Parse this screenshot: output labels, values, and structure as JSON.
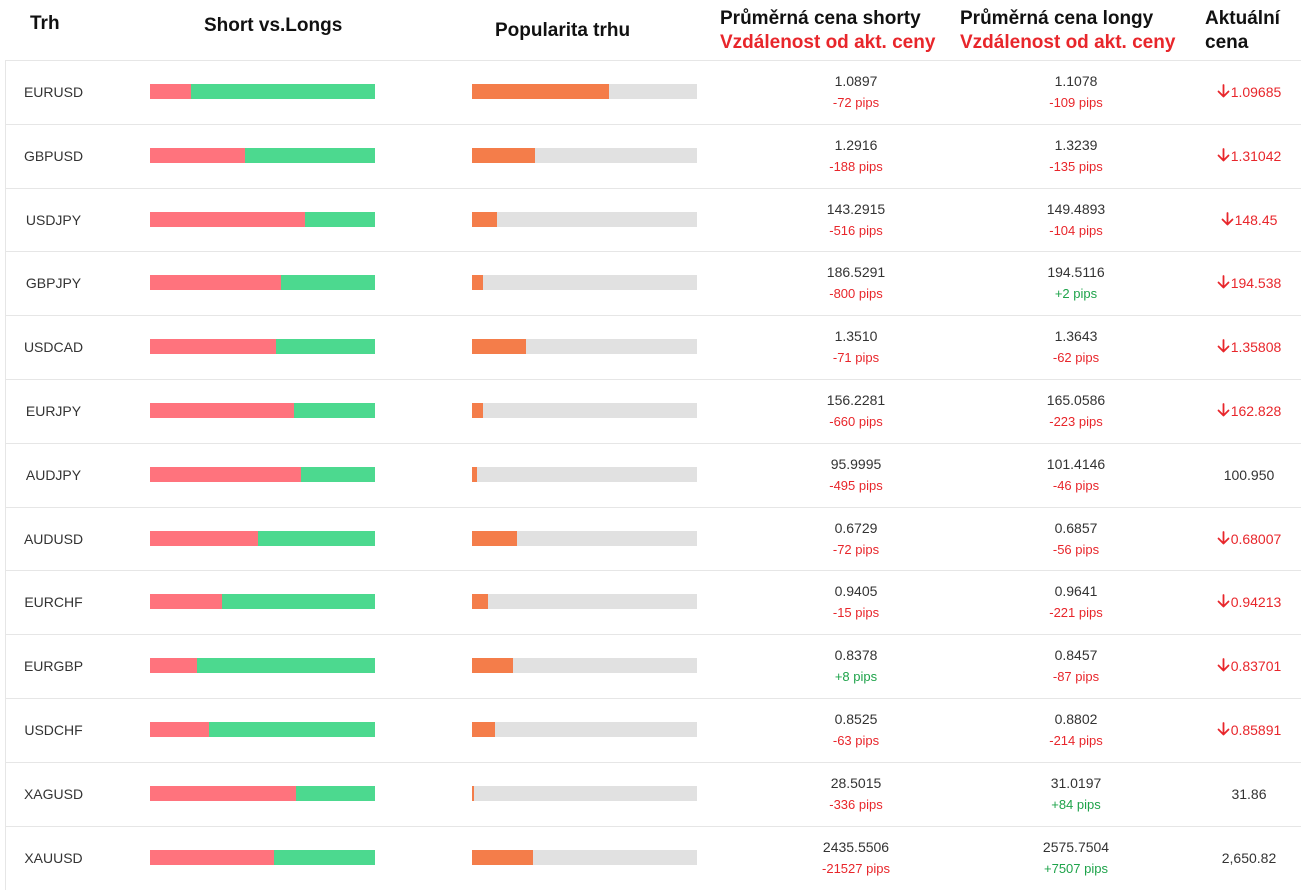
{
  "columns": {
    "market": "Trh",
    "short_vs_longs": "Short vs.Longs",
    "popularity": "Popularita trhu",
    "avg_short": "Průměrná cena shorty",
    "avg_short_sub": "Vzdálenost od akt. ceny",
    "avg_long": "Průměrná cena longy",
    "avg_long_sub": "Vzdálenost od akt. ceny",
    "current_a": "Aktuální",
    "current_b": "cena"
  },
  "colors": {
    "short": "#ff737d",
    "long": "#4cd98f",
    "popularity": "#f47d4a",
    "popularity_track": "#e1e1e1",
    "negative": "#e8262b",
    "positive": "#1ea34a"
  },
  "rows": [
    {
      "symbol": "EURUSD",
      "short_pct": 18,
      "popularity_pct": 61,
      "avg_short": "1.0897",
      "short_pips": "-72 pips",
      "short_pips_sign": "neg",
      "avg_long": "1.1078",
      "long_pips": "-109 pips",
      "long_pips_sign": "neg",
      "current": "1.09685",
      "direction": "down"
    },
    {
      "symbol": "GBPUSD",
      "short_pct": 42,
      "popularity_pct": 28,
      "avg_short": "1.2916",
      "short_pips": "-188 pips",
      "short_pips_sign": "neg",
      "avg_long": "1.3239",
      "long_pips": "-135 pips",
      "long_pips_sign": "neg",
      "current": "1.31042",
      "direction": "down"
    },
    {
      "symbol": "USDJPY",
      "short_pct": 69,
      "popularity_pct": 11,
      "avg_short": "143.2915",
      "short_pips": "-516 pips",
      "short_pips_sign": "neg",
      "avg_long": "149.4893",
      "long_pips": "-104 pips",
      "long_pips_sign": "neg",
      "current": "148.45",
      "direction": "down"
    },
    {
      "symbol": "GBPJPY",
      "short_pct": 58,
      "popularity_pct": 5,
      "avg_short": "186.5291",
      "short_pips": "-800 pips",
      "short_pips_sign": "neg",
      "avg_long": "194.5116",
      "long_pips": "+2 pips",
      "long_pips_sign": "pos",
      "current": "194.538",
      "direction": "down"
    },
    {
      "symbol": "USDCAD",
      "short_pct": 56,
      "popularity_pct": 24,
      "avg_short": "1.3510",
      "short_pips": "-71 pips",
      "short_pips_sign": "neg",
      "avg_long": "1.3643",
      "long_pips": "-62 pips",
      "long_pips_sign": "neg",
      "current": "1.35808",
      "direction": "down"
    },
    {
      "symbol": "EURJPY",
      "short_pct": 64,
      "popularity_pct": 5,
      "avg_short": "156.2281",
      "short_pips": "-660 pips",
      "short_pips_sign": "neg",
      "avg_long": "165.0586",
      "long_pips": "-223 pips",
      "long_pips_sign": "neg",
      "current": "162.828",
      "direction": "down"
    },
    {
      "symbol": "AUDJPY",
      "short_pct": 67,
      "popularity_pct": 2,
      "avg_short": "95.9995",
      "short_pips": "-495 pips",
      "short_pips_sign": "neg",
      "avg_long": "101.4146",
      "long_pips": "-46 pips",
      "long_pips_sign": "neg",
      "current": "100.950",
      "direction": "flat"
    },
    {
      "symbol": "AUDUSD",
      "short_pct": 48,
      "popularity_pct": 20,
      "avg_short": "0.6729",
      "short_pips": "-72 pips",
      "short_pips_sign": "neg",
      "avg_long": "0.6857",
      "long_pips": "-56 pips",
      "long_pips_sign": "neg",
      "current": "0.68007",
      "direction": "down"
    },
    {
      "symbol": "EURCHF",
      "short_pct": 32,
      "popularity_pct": 7,
      "avg_short": "0.9405",
      "short_pips": "-15 pips",
      "short_pips_sign": "neg",
      "avg_long": "0.9641",
      "long_pips": "-221 pips",
      "long_pips_sign": "neg",
      "current": "0.94213",
      "direction": "down"
    },
    {
      "symbol": "EURGBP",
      "short_pct": 21,
      "popularity_pct": 18,
      "avg_short": "0.8378",
      "short_pips": "+8 pips",
      "short_pips_sign": "pos",
      "avg_long": "0.8457",
      "long_pips": "-87 pips",
      "long_pips_sign": "neg",
      "current": "0.83701",
      "direction": "down"
    },
    {
      "symbol": "USDCHF",
      "short_pct": 26,
      "popularity_pct": 10,
      "avg_short": "0.8525",
      "short_pips": "-63 pips",
      "short_pips_sign": "neg",
      "avg_long": "0.8802",
      "long_pips": "-214 pips",
      "long_pips_sign": "neg",
      "current": "0.85891",
      "direction": "down"
    },
    {
      "symbol": "XAGUSD",
      "short_pct": 65,
      "popularity_pct": 1,
      "avg_short": "28.5015",
      "short_pips": "-336 pips",
      "short_pips_sign": "neg",
      "avg_long": "31.0197",
      "long_pips": "+84 pips",
      "long_pips_sign": "pos",
      "current": "31.86",
      "direction": "flat"
    },
    {
      "symbol": "XAUUSD",
      "short_pct": 55,
      "popularity_pct": 27,
      "avg_short": "2435.5506",
      "short_pips": "-21527 pips",
      "short_pips_sign": "neg",
      "avg_long": "2575.7504",
      "long_pips": "+7507 pips",
      "long_pips_sign": "pos",
      "current": "2,650.82",
      "direction": "flat"
    }
  ]
}
